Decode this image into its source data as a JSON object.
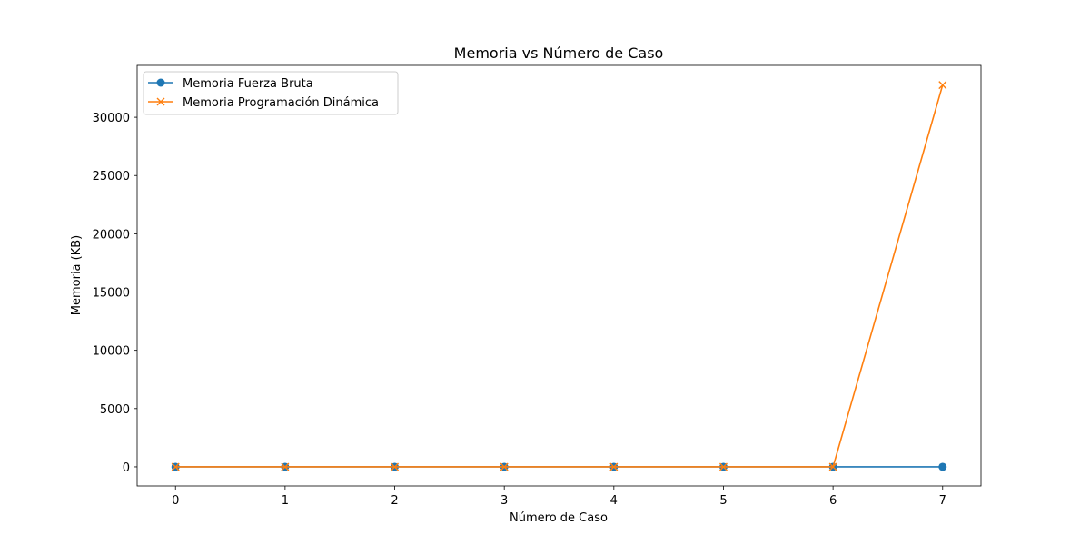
{
  "chart_data": {
    "type": "line",
    "title": "Memoria vs Número de Caso",
    "xlabel": "Número de Caso",
    "ylabel": "Memoria (KB)",
    "x": [
      0,
      1,
      2,
      3,
      4,
      5,
      6,
      7
    ],
    "xlim": [
      -0.35,
      7.35
    ],
    "ylim": [
      -1640,
      34450
    ],
    "xticks": [
      0,
      1,
      2,
      3,
      4,
      5,
      6,
      7
    ],
    "yticks": [
      0,
      5000,
      10000,
      15000,
      20000,
      25000,
      30000
    ],
    "grid": false,
    "legend_position": "upper-left",
    "series": [
      {
        "name": "Memoria Fuerza Bruta",
        "color": "#1f77b4",
        "marker": "circle",
        "values": [
          0,
          0,
          0,
          0,
          0,
          0,
          0,
          0
        ]
      },
      {
        "name": "Memoria Programación Dinámica",
        "color": "#ff7f0e",
        "marker": "x",
        "values": [
          0,
          0,
          0,
          0,
          0,
          0,
          0,
          32768
        ]
      }
    ]
  }
}
